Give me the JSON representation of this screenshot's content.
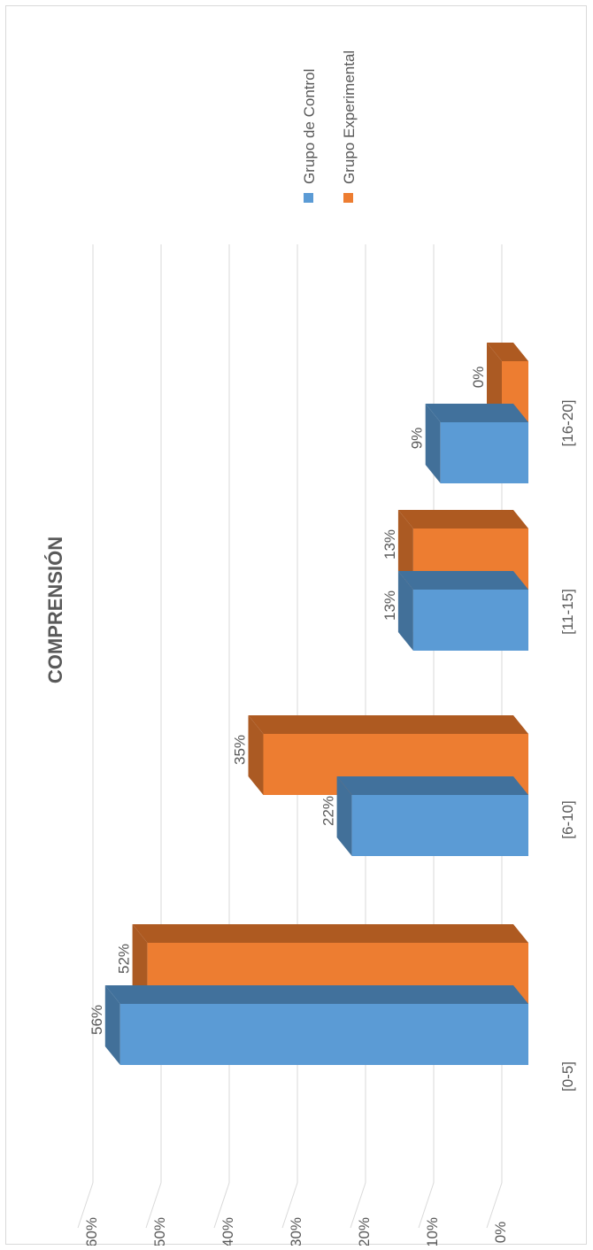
{
  "chart_data": {
    "type": "bar",
    "orientation": "rotated-90",
    "title": "COMPRENSIÓN",
    "categories": [
      "[0-5]",
      "[6-10]",
      "[11-15]",
      "[16-20]"
    ],
    "series": [
      {
        "name": "Grupo de Control",
        "values": [
          56,
          22,
          13,
          9
        ],
        "labels": [
          "56%",
          "22%",
          "13%",
          "9%"
        ],
        "color": "#5b9bd5",
        "side_color": "#41719c"
      },
      {
        "name": "Grupo Experimental",
        "values": [
          52,
          35,
          13,
          0
        ],
        "labels": [
          "52%",
          "35%",
          "13%",
          "0%"
        ],
        "color": "#ed7d31",
        "side_color": "#ae5a21"
      }
    ],
    "value_axis": {
      "min": 0,
      "max": 60,
      "step": 10,
      "tick_labels": [
        "0%",
        "10%",
        "20%",
        "30%",
        "40%",
        "50%",
        "60%"
      ]
    },
    "gridlines": true,
    "legend_position": "right",
    "effect": "3d"
  }
}
